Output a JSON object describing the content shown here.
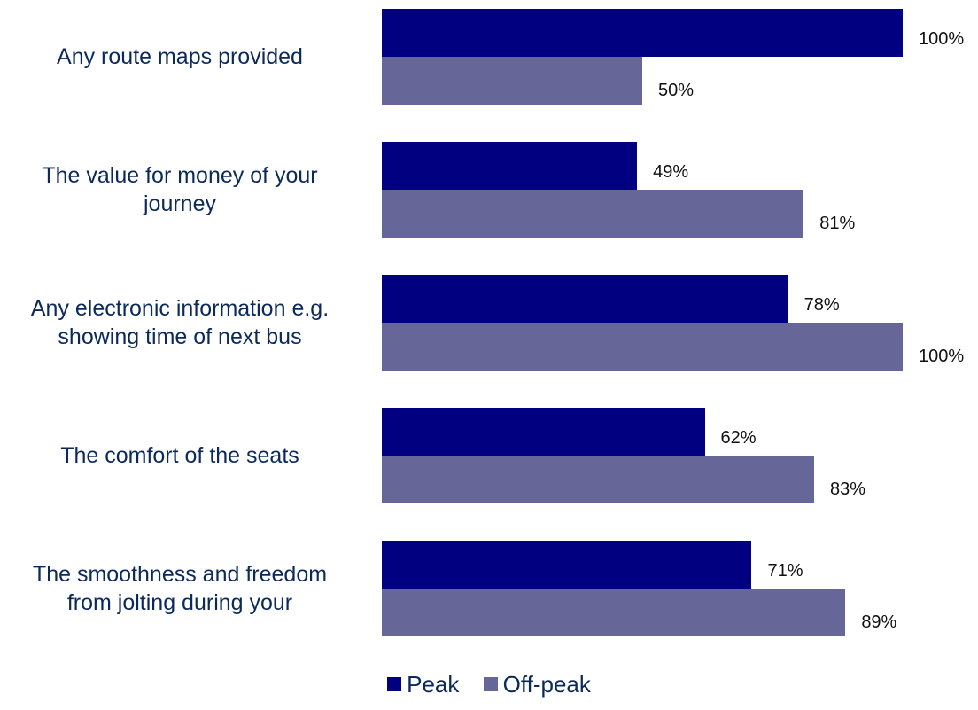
{
  "chart_data": {
    "type": "bar",
    "orientation": "horizontal",
    "categories": [
      "Any route maps provided",
      "The value for money of your journey",
      "Any electronic information e.g. showing time of next bus",
      "The comfort of the seats",
      "The smoothness and freedom from jolting during your"
    ],
    "series": [
      {
        "name": "Peak",
        "values": [
          100,
          49,
          78,
          62,
          71
        ],
        "color": "#000080"
      },
      {
        "name": "Off-peak",
        "values": [
          50,
          81,
          100,
          83,
          89
        ],
        "color": "#666699"
      }
    ],
    "value_labels": {
      "Peak": [
        "100%",
        "49%",
        "78%",
        "62%",
        "71%"
      ],
      "Off-peak": [
        "50%",
        "81%",
        "100%",
        "83%",
        "89%"
      ]
    },
    "xlim": [
      0,
      100
    ],
    "grid": false,
    "legend_position": "bottom"
  },
  "colors": {
    "category_text": "#0B2A5B",
    "value_text": "#111111"
  }
}
